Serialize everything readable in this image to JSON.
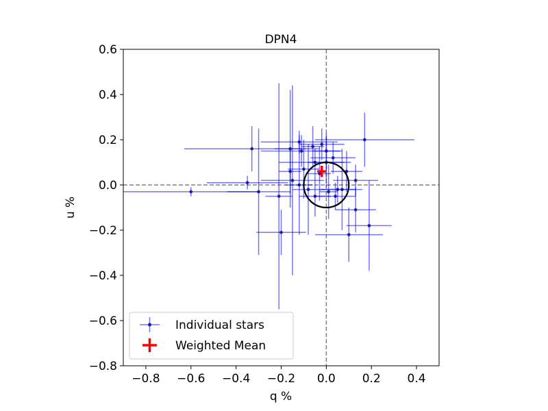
{
  "chart_data": {
    "type": "scatter",
    "title": "DPN4",
    "xlabel": "q %",
    "ylabel": "u %",
    "xlim": [
      -0.9,
      0.5
    ],
    "ylim": [
      -0.8,
      0.6
    ],
    "xticks": [
      -0.8,
      -0.6,
      -0.4,
      -0.2,
      0.0,
      0.2,
      0.4
    ],
    "yticks": [
      -0.8,
      -0.6,
      -0.4,
      -0.2,
      0.0,
      0.2,
      0.4,
      0.6
    ],
    "xtick_labels": [
      "−0.8",
      "−0.6",
      "−0.4",
      "−0.2",
      "0.0",
      "0.2",
      "0.4"
    ],
    "ytick_labels": [
      "−0.8",
      "−0.6",
      "−0.4",
      "−0.2",
      "0.0",
      "0.2",
      "0.4",
      "0.6"
    ],
    "reference_lines": {
      "x": 0.0,
      "y": 0.0,
      "style": "dashed",
      "color": "#808080"
    },
    "circle": {
      "center": [
        0.0,
        0.0
      ],
      "radius": 0.1,
      "color": "#000000"
    },
    "grid": false,
    "legend_position": "lower-left",
    "series": [
      {
        "name": "Individual stars",
        "kind": "errorbar",
        "color": "#0000ff",
        "marker_color": "#000080",
        "points": [
          {
            "x": -0.33,
            "y": 0.16,
            "xerr": 0.3,
            "yerr": 0.1
          },
          {
            "x": -0.3,
            "y": -0.03,
            "xerr": 0.14,
            "yerr": 0.28
          },
          {
            "x": -0.2,
            "y": -0.21,
            "xerr": 0.11,
            "yerr": 0.1
          },
          {
            "x": -0.21,
            "y": -0.05,
            "xerr": 0.06,
            "yerr": 0.5
          },
          {
            "x": -0.16,
            "y": 0.16,
            "xerr": 0.07,
            "yerr": 0.26
          },
          {
            "x": -0.15,
            "y": 0.02,
            "xerr": 0.14,
            "yerr": 0.42
          },
          {
            "x": -0.16,
            "y": 0.06,
            "xerr": 0.05,
            "yerr": 0.1
          },
          {
            "x": -0.12,
            "y": 0.19,
            "xerr": 0.17,
            "yerr": 0.05
          },
          {
            "x": -0.11,
            "y": 0.15,
            "xerr": 0.18,
            "yerr": 0.07
          },
          {
            "x": -0.1,
            "y": 0.07,
            "xerr": 0.07,
            "yerr": 0.13
          },
          {
            "x": -0.08,
            "y": -0.02,
            "xerr": 0.07,
            "yerr": 0.2
          },
          {
            "x": -0.06,
            "y": 0.17,
            "xerr": 0.05,
            "yerr": 0.09
          },
          {
            "x": -0.05,
            "y": 0.1,
            "xerr": 0.16,
            "yerr": 0.06
          },
          {
            "x": -0.05,
            "y": -0.05,
            "xerr": 0.07,
            "yerr": 0.09
          },
          {
            "x": -0.03,
            "y": 0.05,
            "xerr": 0.05,
            "yerr": 0.12
          },
          {
            "x": -0.02,
            "y": 0.18,
            "xerr": 0.1,
            "yerr": 0.07
          },
          {
            "x": 0.0,
            "y": 0.15,
            "xerr": 0.06,
            "yerr": 0.08
          },
          {
            "x": 0.0,
            "y": 0.1,
            "xerr": 0.08,
            "yerr": 0.11
          },
          {
            "x": 0.01,
            "y": -0.03,
            "xerr": 0.04,
            "yerr": 0.12
          },
          {
            "x": 0.03,
            "y": 0.12,
            "xerr": 0.1,
            "yerr": 0.07
          },
          {
            "x": 0.04,
            "y": -0.05,
            "xerr": 0.09,
            "yerr": 0.06
          },
          {
            "x": 0.05,
            "y": -0.02,
            "xerr": 0.08,
            "yerr": 0.06
          },
          {
            "x": 0.07,
            "y": -0.02,
            "xerr": 0.09,
            "yerr": 0.18
          },
          {
            "x": 0.09,
            "y": 0.06,
            "xerr": 0.07,
            "yerr": 0.09
          },
          {
            "x": 0.1,
            "y": -0.22,
            "xerr": 0.15,
            "yerr": 0.12
          },
          {
            "x": 0.13,
            "y": 0.02,
            "xerr": 0.1,
            "yerr": 0.07
          },
          {
            "x": 0.13,
            "y": -0.11,
            "xerr": 0.09,
            "yerr": 0.1
          },
          {
            "x": 0.17,
            "y": 0.2,
            "xerr": 0.22,
            "yerr": 0.12
          },
          {
            "x": 0.19,
            "y": -0.18,
            "xerr": 0.1,
            "yerr": 0.2
          },
          {
            "x": -0.6,
            "y": -0.03,
            "xerr": 0.3,
            "yerr": 0.02
          },
          {
            "x": -0.35,
            "y": 0.01,
            "xerr": 0.18,
            "yerr": 0.03
          },
          {
            "x": -0.12,
            "y": 0.0,
            "xerr": 0.06,
            "yerr": 0.22
          }
        ]
      },
      {
        "name": "Weighted Mean",
        "kind": "cross",
        "color": "#ff0000",
        "points": [
          {
            "x": -0.02,
            "y": 0.06,
            "xerr": 0.02,
            "yerr": 0.025
          }
        ]
      }
    ]
  }
}
